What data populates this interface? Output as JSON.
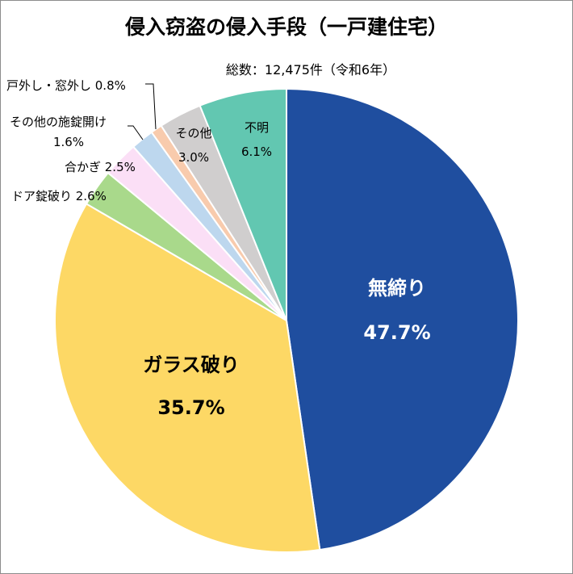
{
  "chart_data": {
    "type": "pie",
    "title": "侵入窃盗の侵入手段（一戸建住宅）",
    "subtitle": "総数：12,475件（令和6年）",
    "start": "top",
    "direction": "clockwise",
    "slices": [
      {
        "name": "無締り",
        "value": 47.7,
        "label": "47.7%",
        "color": "#1f4e9f"
      },
      {
        "name": "ガラス破り",
        "value": 35.7,
        "label": "35.7%",
        "color": "#fdd865"
      },
      {
        "name": "ドア錠破り",
        "value": 2.6,
        "label": "2.6%",
        "color": "#a9d98b"
      },
      {
        "name": "合かぎ",
        "value": 2.5,
        "label": "2.5%",
        "color": "#fbdff6"
      },
      {
        "name": "その他の施錠開け",
        "value": 1.6,
        "label": "1.6%",
        "color": "#bdd7ee"
      },
      {
        "name": "戸外し・窓外し",
        "value": 0.8,
        "label": "0.8%",
        "color": "#f8cbad"
      },
      {
        "name": "その他",
        "value": 3.0,
        "label": "3.0%",
        "color": "#d0cece"
      },
      {
        "name": "不明",
        "value": 6.1,
        "label": "6.1%",
        "color": "#62c7b1"
      }
    ]
  }
}
